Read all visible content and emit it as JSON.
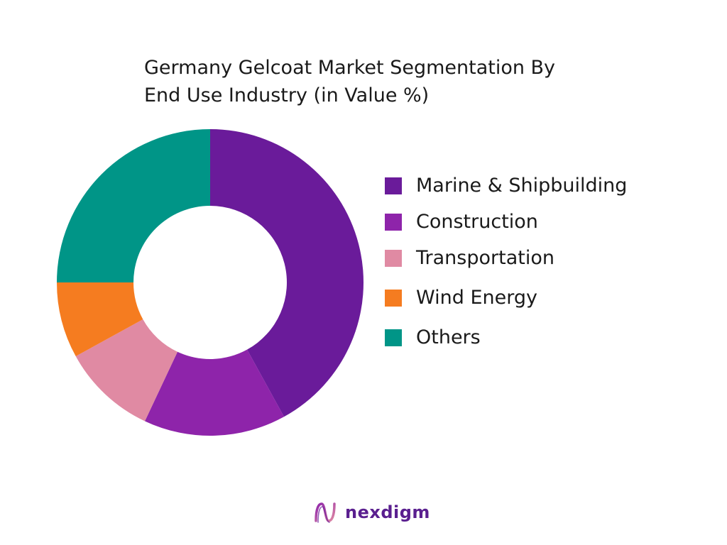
{
  "chart_data": {
    "type": "pie",
    "title_lines": [
      "Germany Gelcoat Market Segmentation By",
      "End Use Industry (in Value %)"
    ],
    "categories": [
      "Marine & Shipbuilding",
      "Construction",
      "Transportation",
      "Wind Energy",
      "Others"
    ],
    "values": [
      42,
      15,
      10,
      8,
      25
    ],
    "colors": [
      "#6a1b9a",
      "#8e24aa",
      "#e08aa3",
      "#f57c20",
      "#009587"
    ],
    "legend_position": "right",
    "donut": true
  },
  "brand": {
    "name": "nexdigm",
    "icon": "nexdigm-logo-icon"
  }
}
